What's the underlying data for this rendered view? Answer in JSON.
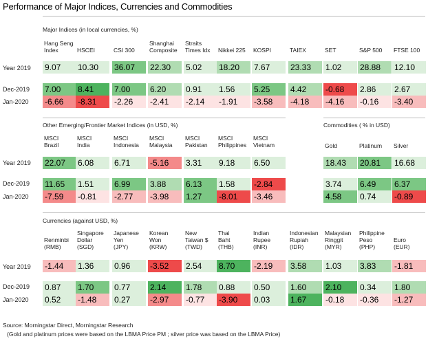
{
  "title": "Performance of Major Indices, Currencies and Commodities",
  "colors": {
    "pos3": "#4db35e",
    "pos2": "#7cc784",
    "pos1": "#b0dcb2",
    "pos0": "#dcefdc",
    "neg3": "#ee4a4a",
    "neg2": "#f48a8a",
    "neg1": "#f8bcbc",
    "neg0": "#fde3e3",
    "rule": "#bcbcbc"
  },
  "sections": {
    "major": {
      "label": "Major Indices (in local currencies, %)",
      "headers": [
        "Hang Seng\nIndex",
        "HSCEI",
        "CSI 300",
        "Shanghai\nComposite",
        "Straits\nTimes Idx",
        "Nikkei 225",
        "KOSPI",
        "TAIEX",
        "SET",
        "S&P 500",
        "FTSE 100"
      ],
      "rows": [
        {
          "label": "Year 2019",
          "values": [
            "9.07",
            "10.30",
            "36.07",
            "22.30",
            "5.02",
            "18.20",
            "7.67",
            "23.33",
            "1.02",
            "28.88",
            "12.10"
          ],
          "shades": [
            "pos0",
            "pos0",
            "pos2",
            "pos1",
            "pos0",
            "pos1",
            "pos0",
            "pos1",
            "pos0",
            "pos1",
            "pos0"
          ]
        },
        {
          "label": "Dec-2019",
          "values": [
            "7.00",
            "8.41",
            "7.00",
            "6.20",
            "0.91",
            "1.56",
            "5.25",
            "4.42",
            "-0.68",
            "2.86",
            "2.67"
          ],
          "shades": [
            "pos2",
            "pos3",
            "pos2",
            "pos1",
            "pos0",
            "pos0",
            "pos2",
            "pos1",
            "neg3",
            "pos0",
            "pos0"
          ]
        },
        {
          "label": "Jan-2020",
          "values": [
            "-6.66",
            "-8.31",
            "-2.26",
            "-2.41",
            "-2.14",
            "-1.91",
            "-3.58",
            "-4.18",
            "-4.16",
            "-0.16",
            "-3.40"
          ],
          "shades": [
            "neg2",
            "neg3",
            "neg0",
            "neg0",
            "neg0",
            "neg0",
            "neg1",
            "neg1",
            "neg1",
            "neg0",
            "neg1"
          ]
        }
      ]
    },
    "emerging": {
      "label": "Other Emerging/Frontier Market Indices (in USD, %)",
      "headers": [
        "MSCI\nBrazil",
        "MSCI\nIndia",
        "MSCI\nIndonesia",
        "MSCI\nMalaysia",
        "MSCI\nPakistan",
        "MSCI\nPhilippines",
        "MSCI\nVietnam"
      ],
      "rows": [
        {
          "label": "Year 2019",
          "values": [
            "22.07",
            "6.08",
            "6.71",
            "-5.16",
            "3.31",
            "9.18",
            "6.50"
          ],
          "shades": [
            "pos2",
            "pos0",
            "pos0",
            "neg2",
            "pos0",
            "pos0",
            "pos0"
          ]
        },
        {
          "label": "Dec-2019",
          "values": [
            "11.65",
            "1.51",
            "6.99",
            "3.88",
            "6.13",
            "1.58",
            "-2.84"
          ],
          "shades": [
            "pos2",
            "pos0",
            "pos2",
            "pos1",
            "pos2",
            "pos0",
            "neg3"
          ]
        },
        {
          "label": "Jan-2020",
          "values": [
            "-7.59",
            "-0.81",
            "-2.77",
            "-3.98",
            "1.27",
            "-8.01",
            "-3.46"
          ],
          "shades": [
            "neg2",
            "neg0",
            "neg1",
            "neg1",
            "pos2",
            "neg3",
            "neg1"
          ]
        }
      ]
    },
    "commodities": {
      "label": "Commodities ( % in USD)",
      "headers": [
        "Gold",
        "Platinum",
        "Silver"
      ],
      "rows": [
        {
          "values": [
            "18.43",
            "20.81",
            "16.68"
          ],
          "shades": [
            "pos1",
            "pos2",
            "pos0"
          ]
        },
        {
          "values": [
            "3.74",
            "6.49",
            "6.37"
          ],
          "shades": [
            "pos0",
            "pos2",
            "pos2"
          ]
        },
        {
          "values": [
            "4.58",
            "0.74",
            "-0.89"
          ],
          "shades": [
            "pos2",
            "pos0",
            "neg3"
          ]
        }
      ]
    },
    "currencies": {
      "label": "Currencies (against USD, %)",
      "headers": [
        "Renminbi\n(RMB)",
        "Singapore\nDollar\n(SGD)",
        "Japanese\nYen\n(JPY)",
        "Korean\nWon\n(KRW)",
        "New\nTaiwan $\n(TWD)",
        "Thai\nBaht\n(THB)",
        "Indian\nRupee\n(INR)",
        "Indonesian\nRupiah\n(IDR)",
        "Malaysian\nRinggit\n(MYR)",
        "Philippine\nPeso\n(PHP)",
        "Euro\n(EUR)"
      ],
      "rows": [
        {
          "label": "Year 2019",
          "values": [
            "-1.44",
            "1.36",
            "0.96",
            "-3.52",
            "2.54",
            "8.70",
            "-2.19",
            "3.58",
            "1.03",
            "3.83",
            "-1.81"
          ],
          "shades": [
            "neg1",
            "pos0",
            "pos0",
            "neg3",
            "pos0",
            "pos3",
            "neg1",
            "pos1",
            "pos0",
            "pos1",
            "neg1"
          ]
        },
        {
          "label": "Dec-2019",
          "values": [
            "0.87",
            "1.70",
            "0.77",
            "2.14",
            "1.78",
            "0.88",
            "0.50",
            "1.60",
            "2.10",
            "0.34",
            "1.80"
          ],
          "shades": [
            "pos0",
            "pos2",
            "pos0",
            "pos3",
            "pos1",
            "pos0",
            "pos0",
            "pos1",
            "pos3",
            "pos0",
            "pos1"
          ]
        },
        {
          "label": "Jan-2020",
          "values": [
            "0.52",
            "-1.48",
            "0.27",
            "-2.97",
            "-0.77",
            "-3.90",
            "0.03",
            "1.67",
            "-0.18",
            "-0.36",
            "-1.27"
          ],
          "shades": [
            "pos0",
            "neg1",
            "pos0",
            "neg2",
            "neg0",
            "neg3",
            "pos0",
            "pos3",
            "neg0",
            "neg0",
            "neg1"
          ]
        }
      ]
    }
  },
  "footer": {
    "source": "Source: Morningstar Direct, Morningstar Research",
    "note": "(Gold and platinum prices were based on the LBMA Price PM ; silver price was based on the LBMA Price)"
  }
}
